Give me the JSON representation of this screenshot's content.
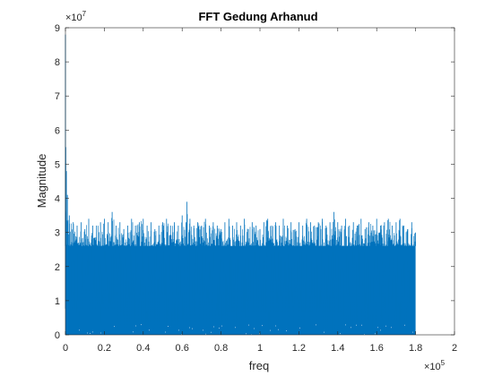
{
  "chart_data": {
    "type": "line",
    "title": "FFT Gedung Arhanud",
    "xlabel": "freq",
    "ylabel": "Magnitude",
    "xlim": [
      0,
      200000
    ],
    "ylim": [
      0,
      90000000
    ],
    "x_exponent_label": "×10",
    "x_exponent_power": "5",
    "y_exponent_label": "×10",
    "y_exponent_power": "7",
    "xticks": [
      {
        "value": 0,
        "label": "0"
      },
      {
        "value": 20000,
        "label": "0.2"
      },
      {
        "value": 40000,
        "label": "0.4"
      },
      {
        "value": 60000,
        "label": "0.6"
      },
      {
        "value": 80000,
        "label": "0.8"
      },
      {
        "value": 100000,
        "label": "1"
      },
      {
        "value": 120000,
        "label": "1.2"
      },
      {
        "value": 140000,
        "label": "1.4"
      },
      {
        "value": 160000,
        "label": "1.6"
      },
      {
        "value": 180000,
        "label": "1.8"
      },
      {
        "value": 200000,
        "label": "2"
      }
    ],
    "yticks": [
      {
        "value": 0,
        "label": "0"
      },
      {
        "value": 10000000,
        "label": "1"
      },
      {
        "value": 20000000,
        "label": "2"
      },
      {
        "value": 30000000,
        "label": "3"
      },
      {
        "value": 40000000,
        "label": "4"
      },
      {
        "value": 50000000,
        "label": "5"
      },
      {
        "value": 60000000,
        "label": "6"
      },
      {
        "value": 70000000,
        "label": "7"
      },
      {
        "value": 80000000,
        "label": "8"
      },
      {
        "value": 90000000,
        "label": "9"
      }
    ],
    "grid": false,
    "series": [
      {
        "color": "#0072BD",
        "x": [
          0,
          200,
          500,
          1000,
          2000,
          4000,
          6000,
          8000,
          10000,
          12000,
          14000,
          16000,
          18000,
          20000,
          22000,
          24000,
          26000,
          28000,
          30000,
          32000,
          34000,
          36000,
          38000,
          40000,
          42000,
          44000,
          46000,
          48000,
          50000,
          52000,
          54000,
          56000,
          58000,
          60000,
          62000,
          62400,
          64000,
          66000,
          68000,
          70000,
          72000,
          74000,
          76000,
          78000,
          80000,
          82000,
          84000,
          86000,
          88000,
          90000,
          92000,
          94000,
          96000,
          98000,
          100000,
          102000,
          104000,
          106000,
          108000,
          110000,
          112000,
          114000,
          116000,
          118000,
          120000,
          122000,
          124000,
          126000,
          128000,
          130000,
          132000,
          134000,
          136000,
          138000,
          140000,
          142000,
          144000,
          146000,
          148000,
          150000,
          152000,
          154000,
          156000,
          158000,
          160000,
          162000,
          164000,
          166000,
          168000,
          170000,
          172000,
          174000,
          176000,
          178000,
          180000
        ],
        "y_peak": [
          88000000,
          55000000,
          48000000,
          41000000,
          35000000,
          33000000,
          32000000,
          33000000,
          31000000,
          34000000,
          32000000,
          32000000,
          33000000,
          34000000,
          33000000,
          36000000,
          32000000,
          33000000,
          31000000,
          32000000,
          34000000,
          32000000,
          33000000,
          34000000,
          32000000,
          33000000,
          31000000,
          32000000,
          33000000,
          34000000,
          32000000,
          33000000,
          32000000,
          35000000,
          33000000,
          39000000,
          34000000,
          32000000,
          33000000,
          32000000,
          34000000,
          32000000,
          33000000,
          32000000,
          31000000,
          33000000,
          34000000,
          32000000,
          33000000,
          32000000,
          34000000,
          31000000,
          33000000,
          32000000,
          31000000,
          33000000,
          34000000,
          32000000,
          33000000,
          32000000,
          34000000,
          32000000,
          33000000,
          31000000,
          33000000,
          32000000,
          34000000,
          33000000,
          32000000,
          33000000,
          34000000,
          32000000,
          33000000,
          36000000,
          33000000,
          32000000,
          34000000,
          32000000,
          33000000,
          32000000,
          34000000,
          31000000,
          33000000,
          32000000,
          34000000,
          32000000,
          33000000,
          34000000,
          32000000,
          33000000,
          34000000,
          32000000,
          31000000,
          33000000,
          30000000
        ],
        "y_band": [
          26000000,
          26000000,
          26000000,
          26000000,
          26000000,
          26000000,
          26000000,
          26000000,
          26000000,
          26000000,
          26000000,
          26000000,
          26000000,
          26000000,
          26000000,
          26000000,
          26000000,
          26000000,
          26000000,
          26000000,
          26000000,
          26000000,
          26000000,
          26000000,
          26000000,
          26000000,
          26000000,
          26000000,
          26000000,
          26000000,
          26000000,
          26000000,
          26000000,
          26000000,
          26000000,
          26000000,
          26000000,
          26000000,
          26000000,
          26000000,
          26000000,
          26000000,
          26000000,
          26000000,
          26000000,
          26000000,
          26000000,
          26000000,
          26000000,
          26000000,
          26000000,
          26000000,
          26000000,
          26000000,
          26000000,
          26000000,
          26000000,
          26000000,
          26000000,
          26000000,
          26000000,
          26000000,
          26000000,
          26000000,
          26000000,
          26000000,
          26000000,
          26000000,
          26000000,
          26000000,
          26000000,
          26000000,
          26000000,
          26000000,
          26000000,
          26000000,
          26000000,
          26000000,
          26000000,
          26000000,
          26000000,
          26000000,
          26000000,
          26000000,
          26000000,
          26000000,
          26000000,
          26000000,
          26000000,
          26000000,
          26000000,
          26000000,
          26000000,
          26000000,
          26000000
        ]
      }
    ]
  }
}
